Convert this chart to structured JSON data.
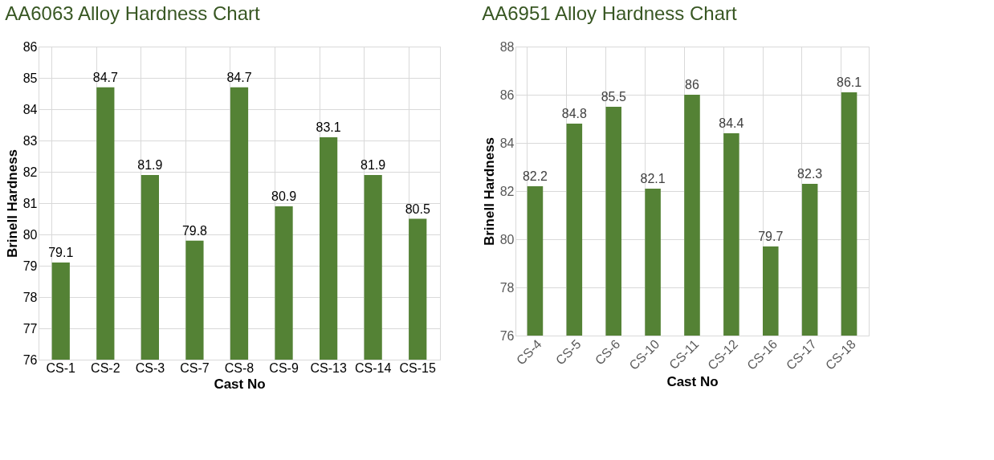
{
  "chart_data": [
    {
      "type": "bar",
      "title": "AA6063 Alloy  Hardness Chart",
      "xlabel": "Cast No",
      "ylabel": "Brinell Hardness",
      "categories": [
        "CS-1",
        "CS-2",
        "CS-3",
        "CS-7",
        "CS-8",
        "CS-9",
        "CS-13",
        "CS-14",
        "CS-15"
      ],
      "values": [
        79.1,
        84.7,
        81.9,
        79.8,
        84.7,
        80.9,
        83.1,
        81.9,
        80.5
      ],
      "color": "#548235",
      "ylim": [
        76,
        86
      ],
      "yticks": [
        76,
        77,
        78,
        79,
        80,
        81,
        82,
        83,
        84,
        85,
        86
      ],
      "grid": true,
      "data_labels": true
    },
    {
      "type": "bar",
      "title": "AA6951 Alloy  Hardness Chart",
      "xlabel": "Cast No",
      "ylabel": "Brinell Hardness",
      "categories": [
        "CS-4",
        "CS-5",
        "CS-6",
        "CS-10",
        "CS-11",
        "CS-12",
        "CS-16",
        "CS-17",
        "CS-18"
      ],
      "values": [
        82.2,
        84.8,
        85.5,
        82.1,
        86,
        84.4,
        79.7,
        82.3,
        86.1
      ],
      "color": "#548235",
      "ylim": [
        76,
        88
      ],
      "yticks": [
        76,
        78,
        80,
        82,
        84,
        86,
        88
      ],
      "grid": true,
      "data_labels": true
    }
  ]
}
